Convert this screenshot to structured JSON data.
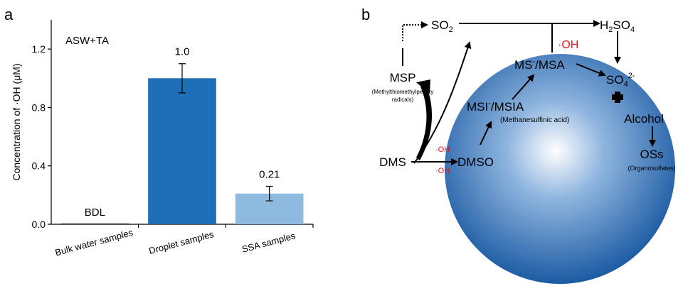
{
  "chart_data": {
    "type": "bar",
    "panel_label": "a",
    "annotation": "ASW+TA",
    "y_label": "Concentration of ·OH (μM)",
    "categories": [
      "Bulk water samples",
      "Droplet samples",
      "SSA samples"
    ],
    "values": [
      0,
      1.0,
      0.21
    ],
    "value_labels": [
      "BDL",
      "1.0",
      "0.21"
    ],
    "errors": [
      null,
      0.1,
      0.05
    ],
    "colors": [
      "#000000",
      "#1f6fb6",
      "#8fbadf"
    ],
    "ylim": [
      0,
      1.4
    ],
    "yticks": [
      {
        "value": 0,
        "label": "0.0"
      },
      {
        "value": 0.4,
        "label": "0.4"
      },
      {
        "value": 0.8,
        "label": "0.8"
      },
      {
        "value": 1.2,
        "label": "1.2"
      }
    ]
  },
  "diagram": {
    "panel_label": "b",
    "so2": [
      "SO",
      "2"
    ],
    "h2so4": [
      "H",
      "2",
      "SO",
      "4"
    ],
    "oh_top": "·OH",
    "ms": [
      "MS",
      "-",
      "/MSA"
    ],
    "so4": [
      "SO",
      "4",
      "2-"
    ],
    "msp": "MSP",
    "msp_note": [
      "(Methylthiomethylperoxy",
      "radicals)"
    ],
    "msi": [
      "MSI",
      "-",
      "/MSIA"
    ],
    "msi_note": "(Methanesulfinic acid)",
    "alcohol": "Alcohol",
    "dms": "DMS",
    "oh_1": "·OH",
    "oh_2": "·OH",
    "dmso": "DMSO",
    "oss": "OSs",
    "oss_note": "(Organosulfates)"
  }
}
